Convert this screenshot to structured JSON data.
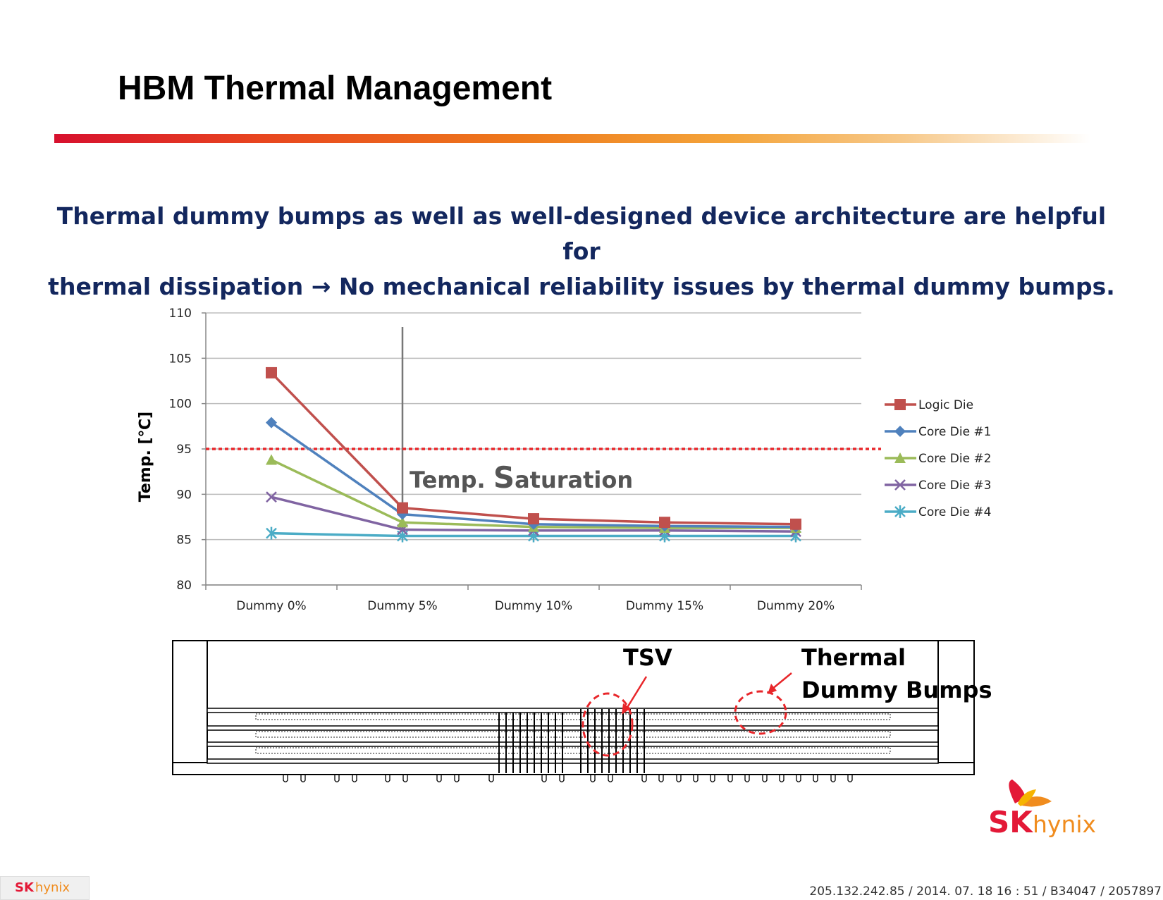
{
  "slide": {
    "title": "HBM Thermal Management",
    "headline_line1": "Thermal dummy bumps as well as well-designed device architecture are helpful for",
    "headline_line2": "thermal dissipation → No mechanical reliability issues by thermal dummy bumps.",
    "annotation_saturation": "Temp. Saturation",
    "diagram_tsv_label": "TSV",
    "diagram_dummy_label_1": "Thermal",
    "diagram_dummy_label_2": "Dummy Bumps",
    "footer_logo_sk": "SK",
    "footer_logo_hynix": "hynix",
    "brand_logo_sk": "SK",
    "brand_logo_hynix": "hynix",
    "footer_info": "205.132.242.85 / 2014. 07. 18  16 : 51 / B34047 / 2057897"
  },
  "colors": {
    "logic_die": "#c0504d",
    "core_die_1": "#4f81bd",
    "core_die_2": "#9bbb59",
    "core_die_3": "#8064a2",
    "core_die_4": "#4bacc6",
    "threshold": "#e8262a",
    "headline": "#13275e",
    "brand_red": "#e31937",
    "brand_orange": "#f08c1e"
  },
  "chart_data": {
    "type": "line",
    "categories": [
      "Dummy 0%",
      "Dummy 5%",
      "Dummy 10%",
      "Dummy 15%",
      "Dummy 20%"
    ],
    "ylabel": "Temp. [℃]",
    "ylim": [
      80,
      110
    ],
    "yticks": [
      80,
      85,
      90,
      95,
      100,
      105,
      110
    ],
    "grid": true,
    "legend": "right",
    "threshold": 95,
    "series": [
      {
        "name": "Logic Die",
        "marker": "square",
        "values": [
          103.4,
          88.5,
          87.3,
          86.9,
          86.7
        ]
      },
      {
        "name": "Core Die #1",
        "marker": "diamond",
        "values": [
          97.9,
          87.8,
          86.7,
          86.5,
          86.4
        ]
      },
      {
        "name": "Core Die #2",
        "marker": "triangle",
        "values": [
          93.8,
          86.9,
          86.4,
          86.3,
          86.3
        ]
      },
      {
        "name": "Core Die #3",
        "marker": "x",
        "values": [
          89.7,
          86.1,
          86.0,
          86.0,
          85.9
        ]
      },
      {
        "name": "Core Die #4",
        "marker": "star",
        "values": [
          85.7,
          85.4,
          85.4,
          85.4,
          85.4
        ]
      }
    ]
  }
}
